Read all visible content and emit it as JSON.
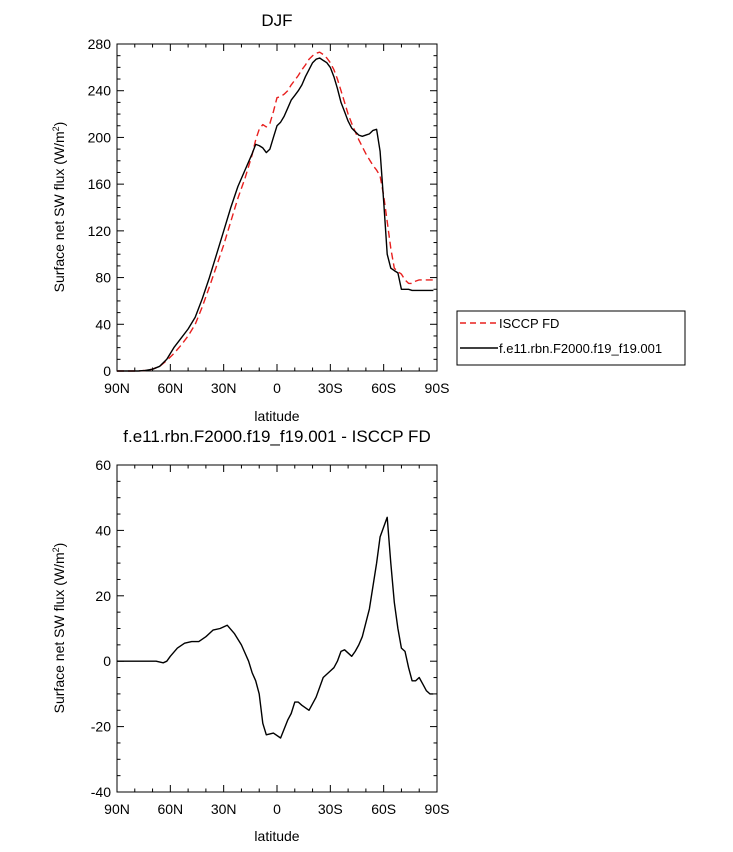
{
  "chart_data": [
    {
      "type": "line",
      "title": "DJF",
      "xlabel": "latitude",
      "ylabel": "Surface net SW flux (W/m",
      "ylabel_sup": "2",
      "ylabel_close": ")",
      "xlim": [
        -90,
        90
      ],
      "ylim": [
        0,
        280
      ],
      "x_ticks": [
        -90,
        -60,
        -30,
        0,
        30,
        60,
        90
      ],
      "x_tick_labels": [
        "90N",
        "60N",
        "30N",
        "0",
        "30S",
        "60S",
        "90S"
      ],
      "y_ticks": [
        0,
        40,
        80,
        120,
        160,
        200,
        240,
        280
      ],
      "y_tick_labels": [
        "0",
        "40",
        "80",
        "120",
        "160",
        "200",
        "240",
        "280"
      ],
      "grid": false,
      "legend_position": "outside-right",
      "series": [
        {
          "name": "ISCCP FD",
          "color": "#e8201f",
          "dash": "dashed",
          "x": [
            -90,
            -86,
            -82,
            -78,
            -74,
            -70,
            -66,
            -62,
            -58,
            -54,
            -50,
            -46,
            -42,
            -38,
            -34,
            -30,
            -26,
            -22,
            -18,
            -14,
            -12,
            -10,
            -8,
            -6,
            -4,
            -2,
            0,
            2,
            4,
            6,
            8,
            10,
            12,
            14,
            16,
            18,
            20,
            22,
            24,
            26,
            28,
            30,
            32,
            34,
            36,
            38,
            40,
            42,
            44,
            46,
            48,
            50,
            52,
            54,
            56,
            58,
            60,
            62,
            64,
            66,
            68,
            70,
            72,
            74,
            76,
            78,
            80,
            82,
            84,
            86,
            88
          ],
          "y": [
            0,
            0,
            0,
            0,
            0.5,
            1.5,
            4,
            9,
            15,
            22,
            30,
            40,
            55,
            72,
            90,
            108,
            128,
            148,
            165,
            185,
            198,
            207,
            211,
            209,
            212,
            222,
            234,
            235,
            237,
            240,
            245,
            249,
            253,
            258,
            262,
            267,
            270,
            272,
            273,
            271,
            268,
            264,
            258,
            250,
            240,
            230,
            220,
            212,
            205,
            198,
            192,
            186,
            181,
            176,
            172,
            167,
            150,
            128,
            105,
            88,
            85,
            83,
            78,
            75,
            75,
            77,
            78,
            78,
            78,
            78,
            78
          ]
        },
        {
          "name": "f.e11.rbn.F2000.f19_f19.001",
          "color": "#000000",
          "dash": "solid",
          "x": [
            -90,
            -86,
            -82,
            -78,
            -74,
            -70,
            -66,
            -62,
            -58,
            -54,
            -50,
            -46,
            -42,
            -38,
            -34,
            -30,
            -26,
            -22,
            -18,
            -14,
            -12,
            -10,
            -8,
            -6,
            -4,
            -2,
            0,
            2,
            4,
            6,
            8,
            10,
            12,
            14,
            16,
            18,
            20,
            22,
            24,
            26,
            28,
            30,
            32,
            34,
            36,
            38,
            40,
            42,
            44,
            46,
            48,
            50,
            52,
            54,
            56,
            58,
            60,
            62,
            64,
            66,
            68,
            70,
            72,
            74,
            76,
            78,
            80,
            82,
            84,
            86,
            88
          ],
          "y": [
            0,
            0,
            0,
            0,
            0.5,
            1.5,
            4,
            10,
            20,
            28,
            36,
            46,
            62,
            80,
            100,
            120,
            140,
            158,
            172,
            186,
            194,
            193,
            191,
            187,
            190,
            200,
            210,
            213,
            218,
            225,
            232,
            236,
            240,
            245,
            252,
            258,
            264,
            267,
            268,
            266,
            264,
            260,
            252,
            242,
            230,
            222,
            214,
            208,
            205,
            202,
            201,
            202,
            203,
            206,
            207,
            188,
            145,
            100,
            88,
            86,
            84,
            70,
            70,
            70,
            69,
            69,
            69,
            69,
            69,
            69,
            69
          ]
        }
      ]
    },
    {
      "type": "line",
      "title": "f.e11.rbn.F2000.f19_f19.001 - ISCCP FD",
      "xlabel": "latitude",
      "ylabel": "Surface net SW flux (W/m",
      "ylabel_sup": "2",
      "ylabel_close": ")",
      "xlim": [
        -90,
        90
      ],
      "ylim": [
        -40,
        60
      ],
      "x_ticks": [
        -90,
        -60,
        -30,
        0,
        30,
        60,
        90
      ],
      "x_tick_labels": [
        "90N",
        "60N",
        "30N",
        "0",
        "30S",
        "60S",
        "90S"
      ],
      "y_ticks": [
        -40,
        -20,
        0,
        20,
        40,
        60
      ],
      "y_tick_labels": [
        "-40",
        "-20",
        "0",
        "20",
        "40",
        "60"
      ],
      "grid": false,
      "series": [
        {
          "color": "#000000",
          "dash": "solid",
          "x": [
            -90,
            -84,
            -78,
            -72,
            -68,
            -64,
            -62,
            -60,
            -56,
            -52,
            -48,
            -44,
            -40,
            -36,
            -32,
            -28,
            -24,
            -20,
            -18,
            -16,
            -14,
            -12,
            -10,
            -8,
            -6,
            -2,
            2,
            6,
            8,
            10,
            12,
            14,
            18,
            22,
            26,
            30,
            32,
            34,
            36,
            38,
            42,
            44,
            46,
            48,
            52,
            56,
            58,
            62,
            64,
            66,
            68,
            70,
            72,
            74,
            76,
            78,
            80,
            82,
            84,
            86,
            88
          ],
          "y": [
            0,
            0,
            0,
            0,
            0,
            -0.5,
            0,
            1.5,
            4,
            5.5,
            6,
            6,
            7.5,
            9.5,
            10,
            11,
            8.5,
            5,
            2.5,
            0,
            -3.5,
            -6,
            -10,
            -19,
            -22.5,
            -22,
            -23.5,
            -18,
            -16,
            -12.5,
            -12.5,
            -13.5,
            -15,
            -11,
            -5,
            -3,
            -2,
            0,
            3,
            3.5,
            1.5,
            3,
            5,
            7.5,
            16,
            30,
            38,
            44,
            30,
            18,
            10,
            4,
            3,
            -2,
            -6,
            -6,
            -5,
            -7,
            -9,
            -10,
            -10
          ]
        }
      ]
    }
  ]
}
